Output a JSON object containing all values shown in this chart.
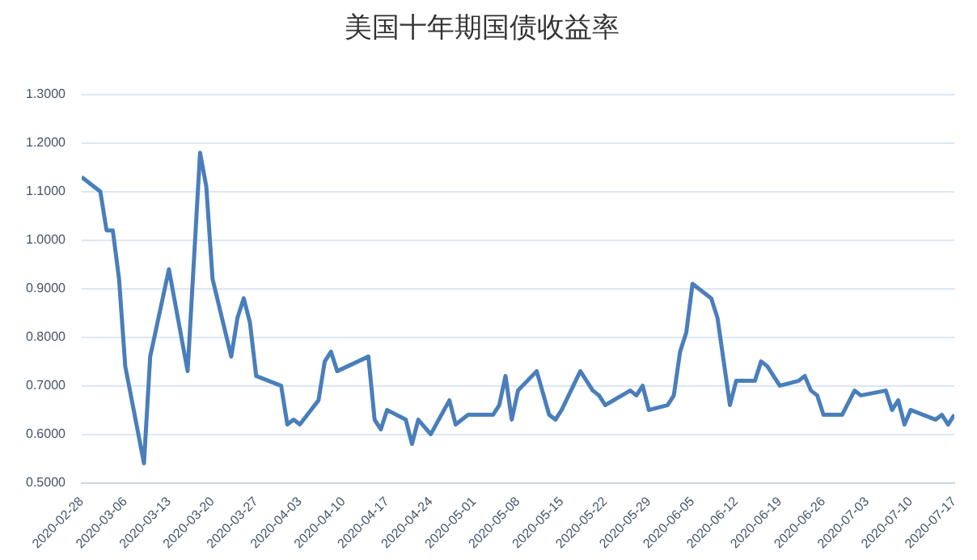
{
  "chart_data": {
    "type": "line",
    "title": "美国十年期国债收益率",
    "x": [
      "2020-02-28",
      "2020-03-02",
      "2020-03-03",
      "2020-03-04",
      "2020-03-05",
      "2020-03-06",
      "2020-03-09",
      "2020-03-10",
      "2020-03-11",
      "2020-03-13",
      "2020-03-16",
      "2020-03-18",
      "2020-03-19",
      "2020-03-20",
      "2020-03-23",
      "2020-03-24",
      "2020-03-25",
      "2020-03-26",
      "2020-03-27",
      "2020-03-31",
      "2020-04-01",
      "2020-04-02",
      "2020-04-03",
      "2020-04-06",
      "2020-04-07",
      "2020-04-08",
      "2020-04-09",
      "2020-04-14",
      "2020-04-15",
      "2020-04-16",
      "2020-04-17",
      "2020-04-20",
      "2020-04-21",
      "2020-04-22",
      "2020-04-24",
      "2020-04-27",
      "2020-04-28",
      "2020-04-30",
      "2020-05-04",
      "2020-05-05",
      "2020-05-06",
      "2020-05-07",
      "2020-05-08",
      "2020-05-11",
      "2020-05-13",
      "2020-05-14",
      "2020-05-15",
      "2020-05-18",
      "2020-05-20",
      "2020-05-21",
      "2020-05-22",
      "2020-05-26",
      "2020-05-27",
      "2020-05-28",
      "2020-05-29",
      "2020-06-01",
      "2020-06-02",
      "2020-06-03",
      "2020-06-04",
      "2020-06-05",
      "2020-06-08",
      "2020-06-09",
      "2020-06-11",
      "2020-06-12",
      "2020-06-15",
      "2020-06-16",
      "2020-06-17",
      "2020-06-19",
      "2020-06-22",
      "2020-06-23",
      "2020-06-24",
      "2020-06-25",
      "2020-06-26",
      "2020-06-29",
      "2020-07-01",
      "2020-07-02",
      "2020-07-06",
      "2020-07-07",
      "2020-07-08",
      "2020-07-09",
      "2020-07-10",
      "2020-07-12",
      "2020-07-14",
      "2020-07-15",
      "2020-07-16",
      "2020-07-17"
    ],
    "series": [
      {
        "color": "#4a7ebb",
        "values": [
          1.13,
          1.1,
          1.02,
          1.02,
          0.92,
          0.74,
          0.54,
          0.76,
          0.82,
          0.94,
          0.73,
          1.18,
          1.11,
          0.92,
          0.76,
          0.84,
          0.88,
          0.83,
          0.72,
          0.7,
          0.62,
          0.63,
          0.62,
          0.67,
          0.75,
          0.77,
          0.73,
          0.76,
          0.63,
          0.61,
          0.65,
          0.63,
          0.58,
          0.63,
          0.6,
          0.67,
          0.62,
          0.64,
          0.64,
          0.66,
          0.72,
          0.63,
          0.69,
          0.73,
          0.64,
          0.63,
          0.65,
          0.73,
          0.69,
          0.68,
          0.66,
          0.69,
          0.68,
          0.7,
          0.65,
          0.66,
          0.68,
          0.77,
          0.81,
          0.91,
          0.88,
          0.84,
          0.66,
          0.71,
          0.71,
          0.75,
          0.74,
          0.7,
          0.71,
          0.72,
          0.69,
          0.68,
          0.64,
          0.64,
          0.69,
          0.68,
          0.69,
          0.65,
          0.67,
          0.62,
          0.65,
          0.64,
          0.63,
          0.64,
          0.62,
          0.64
        ]
      }
    ],
    "xlim": [
      "2020-02-28",
      "2020-07-17"
    ],
    "xticks": [
      "2020-02-28",
      "2020-03-06",
      "2020-03-13",
      "2020-03-20",
      "2020-03-27",
      "2020-04-03",
      "2020-04-10",
      "2020-04-17",
      "2020-04-24",
      "2020-05-01",
      "2020-05-08",
      "2020-05-15",
      "2020-05-22",
      "2020-05-29",
      "2020-06-05",
      "2020-06-12",
      "2020-06-19",
      "2020-06-26",
      "2020-07-03",
      "2020-07-10",
      "2020-07-17"
    ],
    "ylim": [
      0.5,
      1.3
    ],
    "yticks": [
      {
        "value": 0.5,
        "label": "0.5000"
      },
      {
        "value": 0.6,
        "label": "0.6000"
      },
      {
        "value": 0.7,
        "label": "0.7000"
      },
      {
        "value": 0.8,
        "label": "0.8000"
      },
      {
        "value": 0.9,
        "label": "0.9000"
      },
      {
        "value": 1.0,
        "label": "1.0000"
      },
      {
        "value": 1.1,
        "label": "1.1000"
      },
      {
        "value": 1.2,
        "label": "1.2000"
      },
      {
        "value": 1.3,
        "label": "1.3000"
      }
    ],
    "grid": "y",
    "legend": false,
    "marker": "none",
    "line_style": "solid"
  }
}
